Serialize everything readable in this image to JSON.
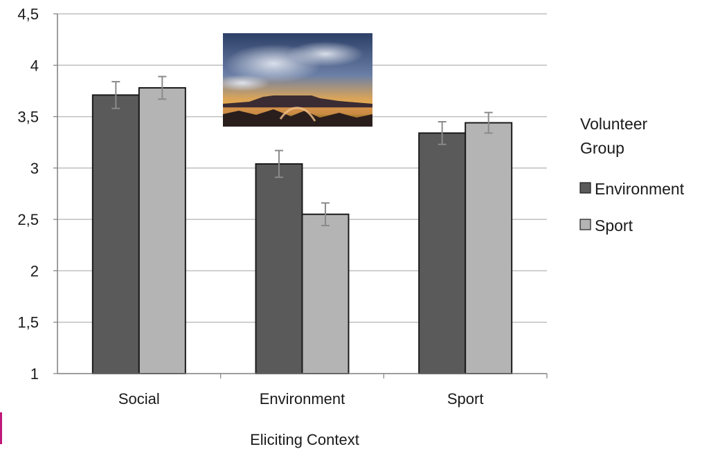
{
  "chart_data": {
    "type": "bar",
    "categories": [
      "Social",
      "Environment",
      "Sport"
    ],
    "series": [
      {
        "name": "Environment",
        "values": [
          3.71,
          3.04,
          3.34
        ],
        "errors": [
          0.13,
          0.13,
          0.11
        ],
        "color": "#5a5a5a"
      },
      {
        "name": "Sport",
        "values": [
          3.78,
          2.55,
          3.44
        ],
        "errors": [
          0.11,
          0.11,
          0.1
        ],
        "color": "#b4b4b4"
      }
    ],
    "title": "",
    "xlabel": "Eliciting Context",
    "ylabel": "",
    "ylim": [
      1,
      4.5
    ],
    "yticks": [
      "1",
      "1,5",
      "2",
      "2,5",
      "3",
      "3,5",
      "4",
      "4,5"
    ],
    "grid": true,
    "legend": {
      "title_lines": [
        "Volunteer",
        "Group"
      ],
      "placement": "right"
    }
  },
  "colors": {
    "grid": "#bfbfbf",
    "axis": "#7f7f7f",
    "bar_stroke": "#1a1a1a",
    "error_bar": "#8a8a8a",
    "accent_edge": "#c0187a"
  },
  "inset_image": {
    "icon": "sunset-table-mountain-photo"
  }
}
